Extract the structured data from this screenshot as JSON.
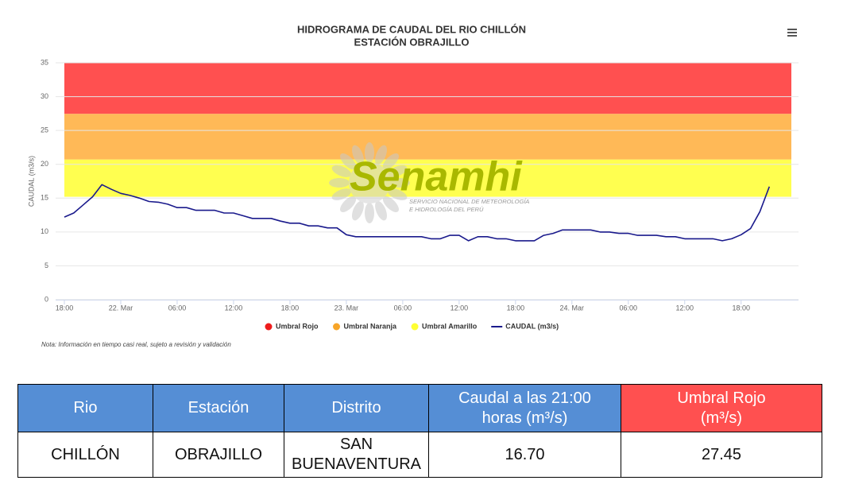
{
  "chart_data": {
    "type": "line",
    "title": "HIDROGRAMA DE CAUDAL DEL RIO CHILLÓN",
    "subtitle": "ESTACIÓN OBRAJILLO",
    "y_label": "CAUDAL (m3/s)",
    "note": "Nota: Información en tiempo casi real, sujeto a revisión y validación",
    "watermark": {
      "title": "Senamhi",
      "lines": [
        "SERVICIO NACIONAL DE METEOROLOGÍA",
        "E HIDROLOGÍA DEL PERÚ"
      ]
    },
    "categories": [
      "18:00",
      null,
      null,
      null,
      null,
      null,
      "22. Mar",
      null,
      null,
      null,
      null,
      null,
      "06:00",
      null,
      null,
      null,
      null,
      null,
      "12:00",
      null,
      null,
      null,
      null,
      null,
      "18:00",
      null,
      null,
      null,
      null,
      null,
      "23. Mar",
      null,
      null,
      null,
      null,
      null,
      "06:00",
      null,
      null,
      null,
      null,
      null,
      "12:00",
      null,
      null,
      null,
      null,
      null,
      "18:00",
      null,
      null,
      null,
      null,
      null,
      "24. Mar",
      null,
      null,
      null,
      null,
      null,
      "06:00",
      null,
      null,
      null,
      null,
      null,
      "12:00",
      null,
      null,
      null,
      null,
      null,
      "18:00",
      null,
      null,
      null
    ],
    "series": [
      {
        "name": "CAUDAL (m3/s)",
        "color": "#1a1a8c",
        "values": [
          12.2,
          12.8,
          14.0,
          15.2,
          17.0,
          16.3,
          15.7,
          15.4,
          15.0,
          14.5,
          14.4,
          14.1,
          13.6,
          13.6,
          13.2,
          13.2,
          13.2,
          12.8,
          12.8,
          12.4,
          12.0,
          12.0,
          12.0,
          11.6,
          11.3,
          11.3,
          10.9,
          10.9,
          10.6,
          10.6,
          9.6,
          9.3,
          9.3,
          9.3,
          9.3,
          9.3,
          9.3,
          9.3,
          9.3,
          9.0,
          9.0,
          9.5,
          9.5,
          8.7,
          9.3,
          9.3,
          9.0,
          9.0,
          8.7,
          8.7,
          8.7,
          9.5,
          9.8,
          10.3,
          10.3,
          10.3,
          10.3,
          10.0,
          10.0,
          9.8,
          9.8,
          9.5,
          9.5,
          9.5,
          9.3,
          9.3,
          9.0,
          9.0,
          9.0,
          9.0,
          8.7,
          9.0,
          9.6,
          10.5,
          13.0,
          16.7
        ]
      }
    ],
    "thresholds": [
      {
        "name": "Umbral Rojo",
        "color": "#ff5050",
        "value": 27.45
      },
      {
        "name": "Umbral Naranja",
        "color": "#ffb957",
        "value": 20.7
      },
      {
        "name": "Umbral Amarillo",
        "color": "#ffff50",
        "value": 15.2
      }
    ],
    "legend_colors": [
      "#ee1c1c",
      "#f7a529",
      "#ffff33"
    ],
    "ylim": [
      0,
      35
    ],
    "yticks": [
      0,
      5,
      10,
      15,
      20,
      25,
      30,
      35
    ],
    "grid": true
  },
  "table": {
    "headers": [
      "Rio",
      "Estación",
      "Distrito",
      "Caudal a las 21:00 horas (m³/s)",
      "Umbral Rojo (m³/s)"
    ],
    "rows": [
      [
        "CHILLÓN",
        "OBRAJILLO",
        "SAN BUENAVENTURA",
        "16.70",
        "27.45"
      ]
    ]
  }
}
